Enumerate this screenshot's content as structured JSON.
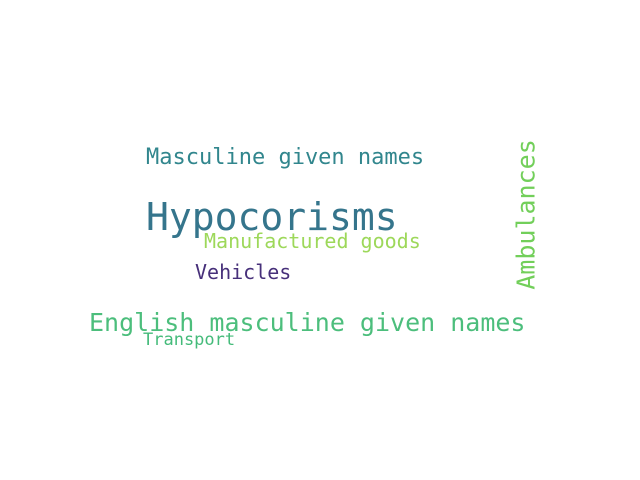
{
  "word_cloud": {
    "words": {
      "hypocorisms": {
        "text": "Hypocorisms",
        "color": "#35758c"
      },
      "masculine_given_names": {
        "text": "Masculine given names",
        "color": "#31868d"
      },
      "english_masculine_given_names": {
        "text": "English masculine given names",
        "color": "#4cbe7c"
      },
      "manufactured_goods": {
        "text": "Manufactured goods",
        "color": "#9dd85a"
      },
      "vehicles": {
        "text": "Vehicles",
        "color": "#47307a"
      },
      "transport": {
        "text": "Transport",
        "color": "#44bb7a"
      },
      "ambulances": {
        "text": "Ambulances",
        "color": "#72cf5a"
      }
    }
  }
}
